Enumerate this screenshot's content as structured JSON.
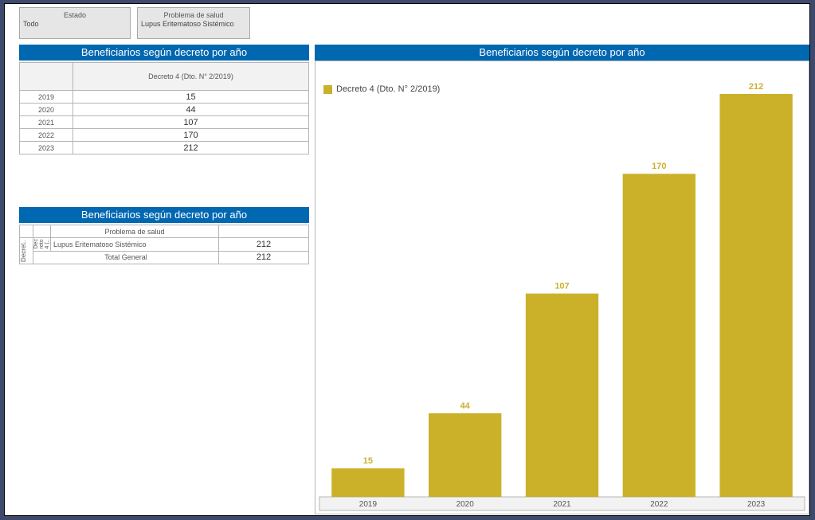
{
  "filters": [
    {
      "title": "Estado",
      "value": "Todo"
    },
    {
      "title": "Problema de salud",
      "value": "Lupus Eritematoso Sistémico"
    }
  ],
  "table1": {
    "title": "Beneficiarios según decreto por año",
    "column_header": "Decreto 4 (Dto. N° 2/2019)",
    "rows": [
      {
        "year": "2019",
        "value": "15"
      },
      {
        "year": "2020",
        "value": "44"
      },
      {
        "year": "2021",
        "value": "107"
      },
      {
        "year": "2022",
        "value": "170"
      },
      {
        "year": "2023",
        "value": "212"
      }
    ]
  },
  "table2": {
    "title": "Beneficiarios según decreto por año",
    "column_header": "Problema de salud",
    "row_header_1": "Decret..",
    "row_header_2": "Dec reto 4 (..",
    "row_label": "Lupus Eritematoso Sistémico",
    "row_value": "212",
    "total_label": "Total General",
    "total_value": "212"
  },
  "chart_panel": {
    "title": "Beneficiarios según decreto por año"
  },
  "chart_data": {
    "type": "bar",
    "categories": [
      "2019",
      "2020",
      "2021",
      "2022",
      "2023"
    ],
    "series": [
      {
        "name": "Decreto 4 (Dto. N° 2/2019)",
        "values": [
          15,
          44,
          107,
          170,
          212
        ]
      }
    ],
    "ylim": [
      0,
      212
    ],
    "legend": "top-left",
    "grid": false,
    "color": "#cbb12a",
    "label_color": "#cbb12a"
  }
}
